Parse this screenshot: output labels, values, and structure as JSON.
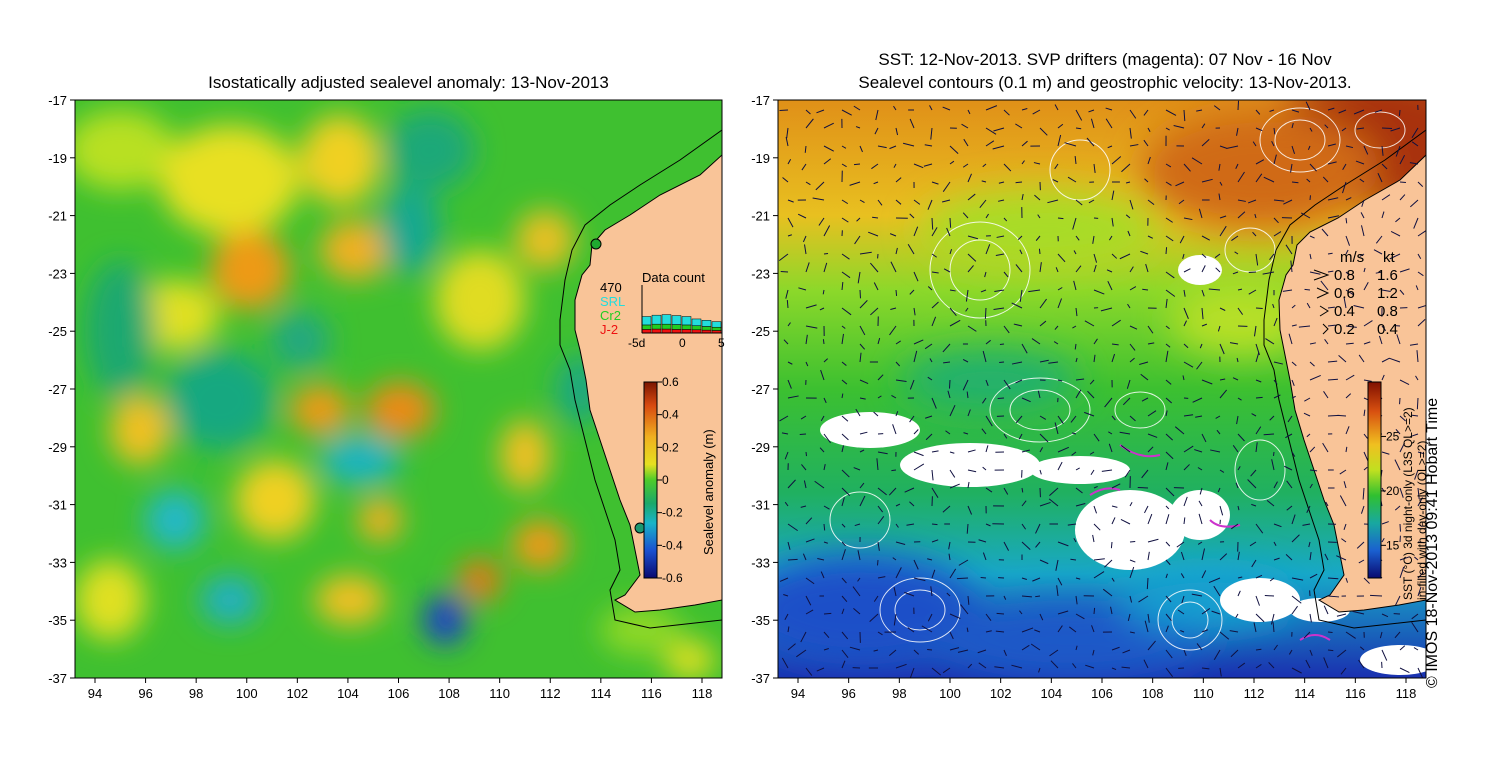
{
  "left_panel": {
    "title": "Isostatically adjusted sealevel anomaly: 13-Nov-2013",
    "y_ticks": [
      "-17",
      "-19",
      "-21",
      "-23",
      "-25",
      "-27",
      "-29",
      "-31",
      "-33",
      "-35",
      "-37"
    ],
    "x_ticks": [
      "94",
      "96",
      "98",
      "100",
      "102",
      "104",
      "106",
      "108",
      "110",
      "112",
      "114",
      "116",
      "118"
    ],
    "data_count": {
      "title": "Data count",
      "max_label": "470",
      "legend": [
        {
          "name": "SRL",
          "color": "#22dddd"
        },
        {
          "name": "Cr2",
          "color": "#22cc22"
        },
        {
          "name": "J-2",
          "color": "#ee1111"
        }
      ],
      "x_ticks": [
        "-5d",
        "0",
        "5"
      ],
      "bars": [
        {
          "srl": 150,
          "cr2": 110,
          "j2": 100
        },
        {
          "srl": 160,
          "cr2": 120,
          "j2": 110
        },
        {
          "srl": 170,
          "cr2": 120,
          "j2": 110
        },
        {
          "srl": 160,
          "cr2": 120,
          "j2": 100
        },
        {
          "srl": 150,
          "cr2": 110,
          "j2": 100
        },
        {
          "srl": 120,
          "cr2": 100,
          "j2": 90
        },
        {
          "srl": 110,
          "cr2": 90,
          "j2": 80
        },
        {
          "srl": 100,
          "cr2": 80,
          "j2": 70
        }
      ]
    },
    "colorbar": {
      "label": "Sealevel anomaly (m)",
      "ticks": [
        "0.6",
        "0.4",
        "0.2",
        "0",
        "-0.2",
        "-0.4",
        "-0.6"
      ],
      "range": [
        -0.6,
        0.6
      ]
    }
  },
  "right_panel": {
    "title_line1": "SST: 12-Nov-2013. SVP drifters (magenta): 07 Nov - 16 Nov",
    "title_line2": "Sealevel contours (0.1 m) and geostrophic velocity: 13-Nov-2013.",
    "y_ticks": [
      "-17",
      "-19",
      "-21",
      "-23",
      "-25",
      "-27",
      "-29",
      "-31",
      "-33",
      "-35",
      "-37"
    ],
    "x_ticks": [
      "94",
      "96",
      "98",
      "100",
      "102",
      "104",
      "106",
      "108",
      "110",
      "112",
      "114",
      "116",
      "118"
    ],
    "speed_legend": {
      "header_ms": "m/s",
      "header_kt": "kt",
      "rows": [
        {
          "ms": "0.8",
          "kt": "1.6"
        },
        {
          "ms": "0.6",
          "kt": "1.2"
        },
        {
          "ms": "0.4",
          "kt": "0.8"
        },
        {
          "ms": "0.2",
          "kt": "0.4"
        }
      ]
    },
    "colorbar": {
      "label_line1": "SST (°C) 3d night-only (L3S QL>=2)",
      "label_line2": "in-filled with day-only (QL>=2)",
      "ticks": [
        "25",
        "20",
        "15"
      ],
      "range": [
        12,
        30
      ]
    }
  },
  "credit": "© IMOS 18-Nov-2013 09:41 Hobart Time"
}
